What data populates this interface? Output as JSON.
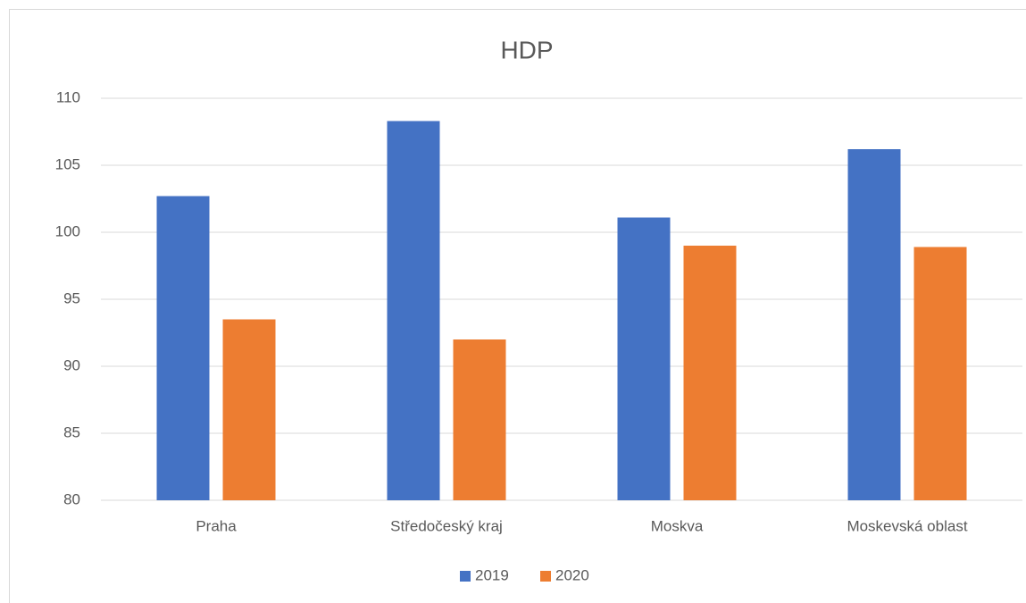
{
  "chart_data": {
    "type": "bar",
    "title": "HDP",
    "categories": [
      "Praha",
      "Středočeský kraj",
      "Moskva",
      "Moskevská oblast"
    ],
    "series": [
      {
        "name": "2019",
        "color": "#4472c4",
        "values": [
          102.7,
          108.3,
          101.1,
          106.2
        ]
      },
      {
        "name": "2020",
        "color": "#ed7d31",
        "values": [
          93.5,
          92,
          99,
          98.9
        ]
      }
    ],
    "ylim": [
      80,
      110
    ],
    "yticks": [
      80,
      85,
      90,
      95,
      100,
      105,
      110
    ],
    "grid": true,
    "legend": "bottom"
  }
}
